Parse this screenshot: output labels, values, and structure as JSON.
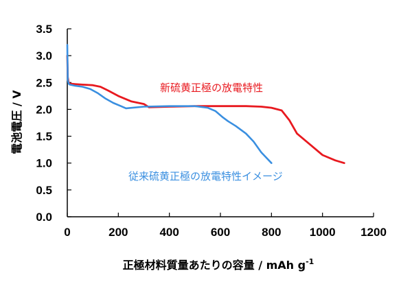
{
  "chart_data": {
    "type": "line",
    "title": "",
    "xlabel": "正極材料質量あたりの容量 / mAh g",
    "xlabel_sup": "-1",
    "ylabel": "電池電圧 / V",
    "xlim": [
      0,
      1200
    ],
    "ylim": [
      0,
      3.5
    ],
    "x_ticks": [
      "0",
      "200",
      "400",
      "600",
      "800",
      "1000",
      "1200"
    ],
    "y_ticks": [
      "0.0",
      "0.5",
      "1.0",
      "1.5",
      "2.0",
      "2.5",
      "3.0",
      "3.5"
    ],
    "grid": false,
    "legend": "none",
    "annotations": [
      {
        "text": "新硫黄正極の放電特性",
        "color": "#e8191f",
        "near": "red curve, upper middle"
      },
      {
        "text": "従来硫黄正極の放電特性イメージ",
        "color": "#3a8fe0",
        "near": "blue curve, lower right"
      }
    ],
    "series": [
      {
        "color": "#e8191f",
        "x": [
          0,
          2,
          5,
          10,
          30,
          60,
          100,
          130,
          160,
          200,
          250,
          300,
          320,
          400,
          500,
          600,
          700,
          760,
          800,
          840,
          870,
          900,
          950,
          1000,
          1050,
          1085
        ],
        "y": [
          3.0,
          2.6,
          2.5,
          2.48,
          2.47,
          2.46,
          2.45,
          2.42,
          2.35,
          2.25,
          2.15,
          2.1,
          2.04,
          2.05,
          2.06,
          2.06,
          2.06,
          2.05,
          2.03,
          1.98,
          1.8,
          1.55,
          1.35,
          1.15,
          1.05,
          1.0
        ]
      },
      {
        "color": "#3a8fe0",
        "x": [
          0,
          2,
          5,
          10,
          30,
          60,
          90,
          120,
          150,
          180,
          210,
          230,
          300,
          400,
          500,
          550,
          580,
          610,
          630,
          660,
          700,
          730,
          760,
          800
        ],
        "y": [
          3.2,
          2.55,
          2.48,
          2.46,
          2.44,
          2.42,
          2.38,
          2.3,
          2.2,
          2.12,
          2.06,
          2.02,
          2.05,
          2.06,
          2.06,
          2.03,
          1.97,
          1.85,
          1.78,
          1.69,
          1.55,
          1.4,
          1.2,
          1.0
        ]
      }
    ]
  }
}
